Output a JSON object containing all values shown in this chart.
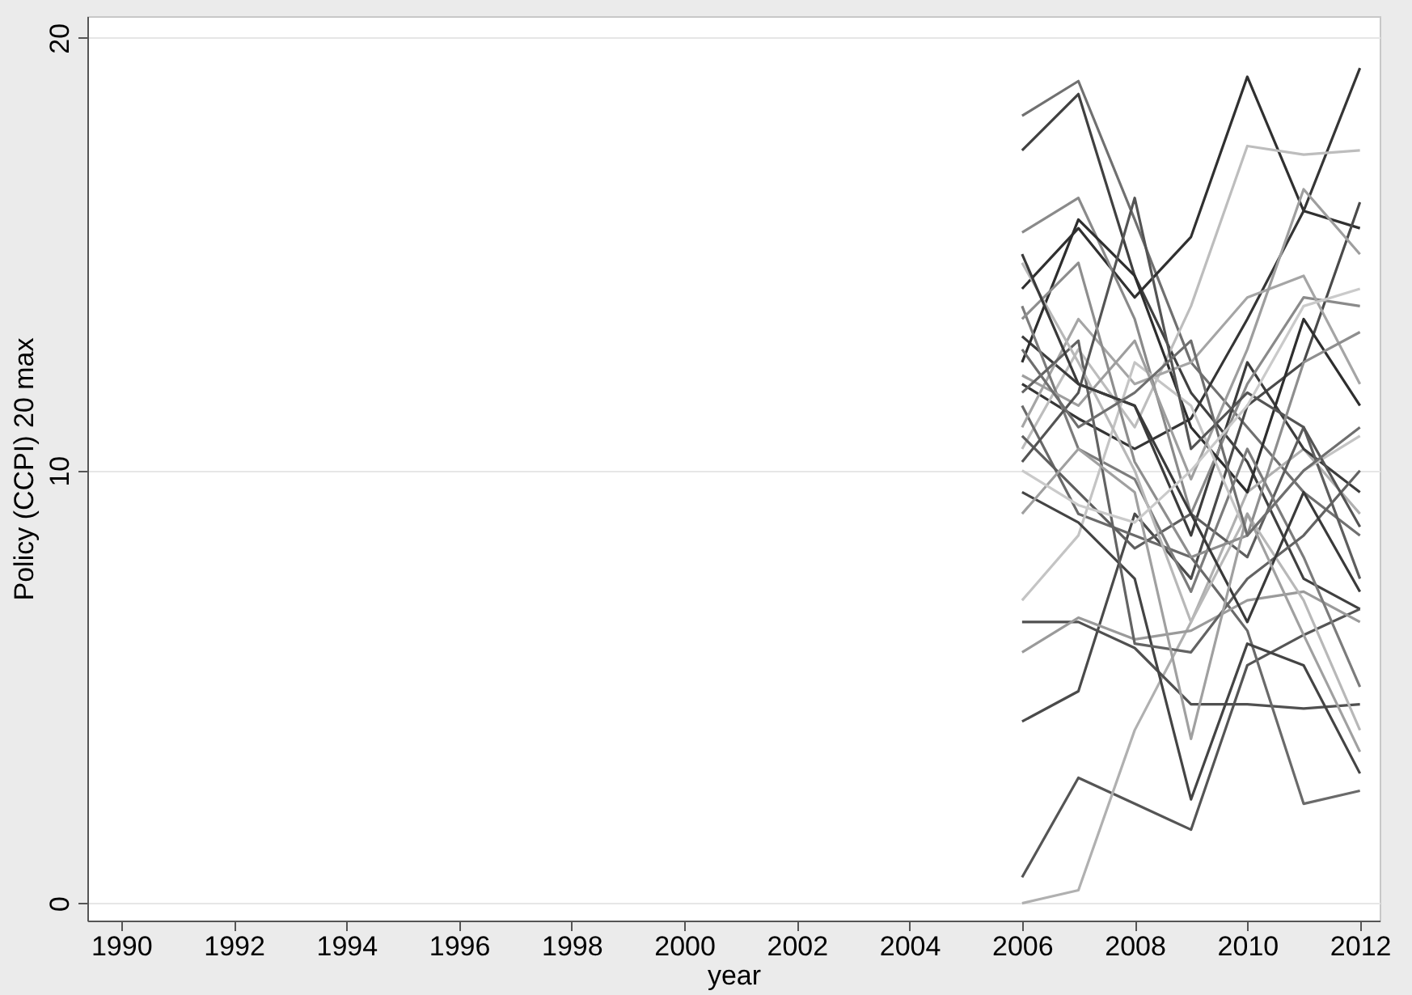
{
  "chart_data": {
    "type": "line",
    "xlabel": "year",
    "ylabel": "Policy (CCPI) 20 max",
    "x": [
      2006,
      2007,
      2008,
      2009,
      2010,
      2011,
      2012
    ],
    "xlim": [
      1989.4,
      2012.35
    ],
    "xticks": [
      1990,
      1992,
      1994,
      1996,
      1998,
      2000,
      2002,
      2004,
      2006,
      2008,
      2010,
      2012
    ],
    "ylim": [
      -0.4,
      20.5
    ],
    "yticks": [
      0,
      10,
      20
    ],
    "grid": "y",
    "legend": false,
    "marker": "none",
    "line_style": "solid",
    "series": [
      {
        "color": "#707070",
        "values": [
          18.2,
          19.0,
          15.8,
          12.5,
          11.0,
          9.5,
          8.5
        ]
      },
      {
        "color": "#404040",
        "values": [
          17.4,
          18.7,
          14.5,
          11.8,
          10.2,
          7.5,
          6.8
        ]
      },
      {
        "color": "#303030",
        "values": [
          14.2,
          15.6,
          14.0,
          15.4,
          19.1,
          16.0,
          15.6
        ]
      },
      {
        "color": "#353535",
        "values": [
          12.0,
          11.2,
          10.5,
          11.2,
          13.5,
          16.0,
          19.3
        ]
      },
      {
        "color": "#bdbdbd",
        "values": [
          10.5,
          12.8,
          11.0,
          13.8,
          17.5,
          17.3,
          17.4
        ]
      },
      {
        "color": "#555555",
        "values": [
          0.6,
          2.9,
          2.3,
          1.7,
          5.5,
          6.2,
          6.8
        ]
      },
      {
        "color": "#b0b0b0",
        "values": [
          0.0,
          0.3,
          4.0,
          6.5,
          9.5,
          10.5,
          9.0
        ]
      },
      {
        "color": "#4a4a4a",
        "values": [
          4.2,
          4.9,
          9.0,
          7.5,
          11.5,
          12.5,
          16.2
        ]
      },
      {
        "color": "#505050",
        "values": [
          6.5,
          6.5,
          5.9,
          4.6,
          4.6,
          4.5,
          4.6
        ]
      },
      {
        "color": "#6a6a6a",
        "values": [
          11.5,
          9.0,
          8.5,
          8.0,
          6.3,
          2.3,
          2.6
        ]
      },
      {
        "color": "#9a9a9a",
        "values": [
          5.8,
          6.6,
          6.1,
          6.3,
          7.0,
          7.2,
          6.5
        ]
      },
      {
        "color": "#3c3c3c",
        "values": [
          13.1,
          12.0,
          11.5,
          8.5,
          12.5,
          10.5,
          9.5
        ]
      },
      {
        "color": "#8a8a8a",
        "values": [
          15.5,
          16.3,
          13.5,
          9.0,
          12.0,
          14.0,
          13.8
        ]
      },
      {
        "color": "#2e2e2e",
        "values": [
          12.5,
          15.8,
          14.5,
          11.0,
          9.5,
          13.5,
          11.5
        ]
      },
      {
        "color": "#a5a5a5",
        "values": [
          11.0,
          13.5,
          12.0,
          12.5,
          14.0,
          14.5,
          12.0
        ]
      },
      {
        "color": "#5e5e5e",
        "values": [
          10.8,
          9.5,
          8.2,
          9.0,
          8.0,
          11.0,
          7.5
        ]
      },
      {
        "color": "#7c7c7c",
        "values": [
          13.8,
          10.5,
          9.8,
          7.2,
          10.5,
          8.0,
          5.0
        ]
      },
      {
        "color": "#c4c4c4",
        "values": [
          7.0,
          8.5,
          12.5,
          11.5,
          8.5,
          10.0,
          10.8
        ]
      },
      {
        "color": "#444444",
        "values": [
          9.5,
          8.8,
          7.5,
          2.4,
          6.0,
          5.5,
          3.0
        ]
      },
      {
        "color": "#9e9e9e",
        "values": [
          12.2,
          11.5,
          13.0,
          9.8,
          12.8,
          16.5,
          15.0
        ]
      },
      {
        "color": "#636363",
        "values": [
          11.8,
          13.0,
          6.0,
          5.8,
          7.5,
          8.5,
          10.0
        ]
      },
      {
        "color": "#b8b8b8",
        "values": [
          14.8,
          12.5,
          10.0,
          6.5,
          9.0,
          7.0,
          4.0
        ]
      },
      {
        "color": "#545454",
        "values": [
          10.2,
          11.8,
          16.3,
          10.5,
          11.8,
          11.0,
          8.7
        ]
      },
      {
        "color": "#8e8e8e",
        "values": [
          13.5,
          14.8,
          10.2,
          8.0,
          8.5,
          12.5,
          13.2
        ]
      },
      {
        "color": "#3a3a3a",
        "values": [
          15.0,
          12.0,
          11.5,
          9.0,
          6.5,
          9.5,
          7.2
        ]
      },
      {
        "color": "#a0a0a0",
        "values": [
          9.0,
          10.5,
          9.5,
          3.8,
          9.0,
          6.2,
          3.5
        ]
      },
      {
        "color": "#6e6e6e",
        "values": [
          12.8,
          11.0,
          11.8,
          13.0,
          8.5,
          10.0,
          11.0
        ]
      },
      {
        "color": "#cacaca",
        "values": [
          10.0,
          9.2,
          8.8,
          10.0,
          11.5,
          13.8,
          14.2
        ]
      }
    ]
  }
}
